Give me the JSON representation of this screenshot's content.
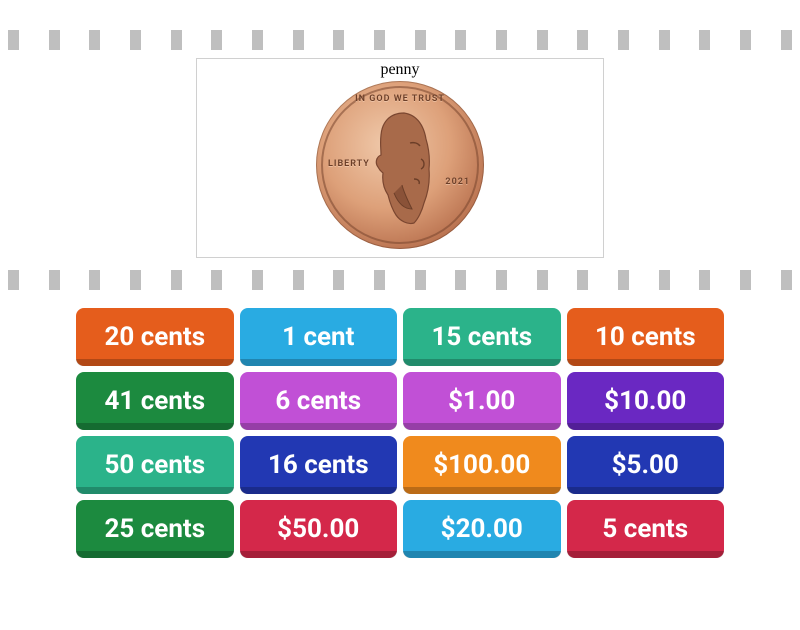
{
  "card": {
    "label": "penny",
    "coin_top": "IN GOD WE TRUST",
    "coin_left": "LIBERTY",
    "coin_year": "2021",
    "coin_color_light": "#f0c9aa",
    "coin_color_mid": "#dda079",
    "coin_color_dark": "#b76f4d"
  },
  "dash_color": "#bfbfbf",
  "dash_count": 20,
  "tiles": [
    {
      "label": "20 cents",
      "bg": "#e55d1c"
    },
    {
      "label": "1 cent",
      "bg": "#29abe2"
    },
    {
      "label": "15 cents",
      "bg": "#2bb38a"
    },
    {
      "label": "10 cents",
      "bg": "#e55d1c"
    },
    {
      "label": "41 cents",
      "bg": "#1c8a3f"
    },
    {
      "label": "6 cents",
      "bg": "#c150d6"
    },
    {
      "label": "$1.00",
      "bg": "#c150d6"
    },
    {
      "label": "$10.00",
      "bg": "#6a28c2"
    },
    {
      "label": "50 cents",
      "bg": "#2bb38a"
    },
    {
      "label": "16 cents",
      "bg": "#2238b3"
    },
    {
      "label": "$100.00",
      "bg": "#f08a1d"
    },
    {
      "label": "$5.00",
      "bg": "#2238b3"
    },
    {
      "label": "25 cents",
      "bg": "#1c8a3f"
    },
    {
      "label": "$50.00",
      "bg": "#d4284a"
    },
    {
      "label": "$20.00",
      "bg": "#29abe2"
    },
    {
      "label": "5 cents",
      "bg": "#d4284a"
    }
  ]
}
